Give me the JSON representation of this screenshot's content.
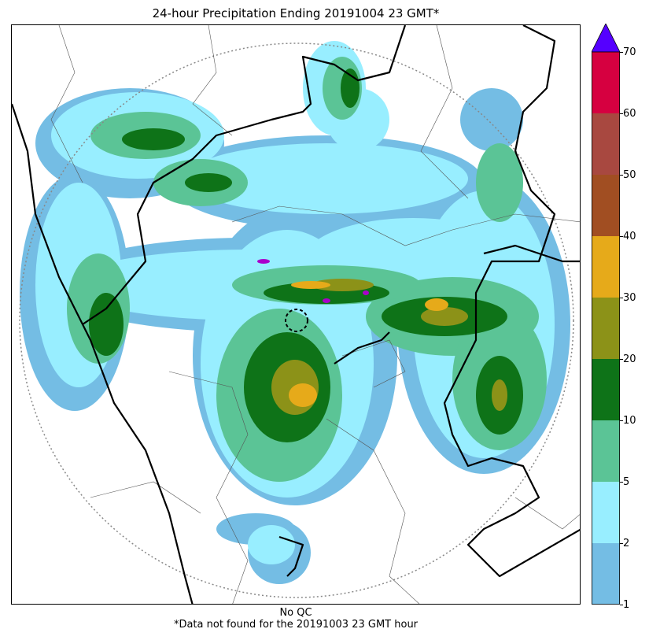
{
  "title": "24-hour Precipitation Ending 20191004 23 GMT*",
  "footer": {
    "qc": "No QC",
    "note": "*Data not found for the 20191003 23 GMT hour"
  },
  "colorbar": {
    "ticks": [
      "1",
      "2",
      "5",
      "10",
      "20",
      "30",
      "40",
      "50",
      "60",
      "70"
    ],
    "bins": [
      {
        "from": "1",
        "to": "2",
        "color": "#74bde4"
      },
      {
        "from": "2",
        "to": "5",
        "color": "#98eeff"
      },
      {
        "from": "5",
        "to": "10",
        "color": "#5bc496"
      },
      {
        "from": "10",
        "to": "20",
        "color": "#0e7318"
      },
      {
        "from": "20",
        "to": "30",
        "color": "#8c9218"
      },
      {
        "from": "30",
        "to": "40",
        "color": "#e6aa1a"
      },
      {
        "from": "40",
        "to": "50",
        "color": "#a14e22"
      },
      {
        "from": "50",
        "to": "60",
        "color": "#a84840"
      },
      {
        "from": "60",
        "to": "70",
        "color": "#d60040"
      }
    ],
    "extend_color": "#5500ff"
  },
  "map": {
    "radar_range_ring": "dotted",
    "border_color": "#000000"
  }
}
